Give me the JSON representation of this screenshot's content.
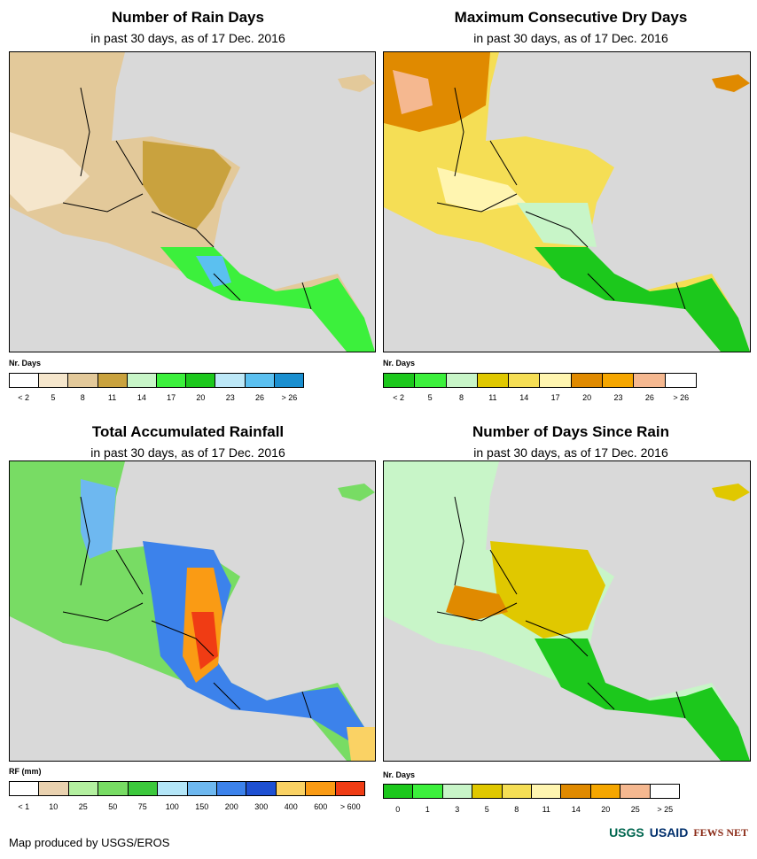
{
  "panels": [
    {
      "id": "rain-days",
      "title": "Number of Rain Days",
      "subtitle": "in past 30 days, as of 17 Dec. 2016",
      "unit": "Nr. Days",
      "legend_colors": [
        "#ffffff",
        "#f5e6cc",
        "#e3c99a",
        "#c9a23e",
        "#c8f5c8",
        "#3cf03c",
        "#1cc81c",
        "#bde8f7",
        "#5bc0f0",
        "#1a8fd0"
      ],
      "legend_labels": [
        "< 2",
        "5",
        "8",
        "11",
        "14",
        "17",
        "20",
        "23",
        "26",
        "> 26"
      ]
    },
    {
      "id": "dry-days",
      "title": "Maximum Consecutive Dry Days",
      "subtitle": "in past 30 days, as of 17 Dec. 2016",
      "unit": "Nr. Days",
      "legend_colors": [
        "#1cc81c",
        "#3cf03c",
        "#c8f5c8",
        "#e0c800",
        "#f5de55",
        "#fff5b0",
        "#e08a00",
        "#f5a600",
        "#f5b890",
        "#ffffff"
      ],
      "legend_labels": [
        "< 2",
        "5",
        "8",
        "11",
        "14",
        "17",
        "20",
        "23",
        "26",
        "> 26"
      ]
    },
    {
      "id": "total-rainfall",
      "title": "Total Accumulated Rainfall",
      "subtitle": "in past 30 days, as of 17 Dec. 2016",
      "unit": "RF (mm)",
      "legend_colors": [
        "#ffffff",
        "#ead2b0",
        "#b4f0a0",
        "#78dc64",
        "#3cc83c",
        "#b4e6f8",
        "#6eb8f0",
        "#3c82eb",
        "#1e50d2",
        "#fad264",
        "#fa9b14",
        "#f03c14"
      ],
      "legend_labels": [
        "< 1",
        "10",
        "25",
        "50",
        "75",
        "100",
        "150",
        "200",
        "300",
        "400",
        "600",
        "> 600"
      ]
    },
    {
      "id": "days-since-rain",
      "title": "Number of Days Since Rain",
      "subtitle": "in past 30 days, as of 17 Dec. 2016",
      "unit": "Nr. Days",
      "legend_colors": [
        "#1cc81c",
        "#3cf03c",
        "#c8f5c8",
        "#e0c800",
        "#f5de55",
        "#fff5b0",
        "#e08a00",
        "#f5a600",
        "#f5b890",
        "#ffffff"
      ],
      "legend_labels": [
        "0",
        "1",
        "3",
        "5",
        "8",
        "11",
        "14",
        "20",
        "25",
        "> 25"
      ]
    }
  ],
  "footer": {
    "credit": "Map produced by USGS/EROS",
    "logo_usgs": "USGS",
    "logo_usaid": "USAID",
    "logo_fews": "FEWS NET"
  }
}
